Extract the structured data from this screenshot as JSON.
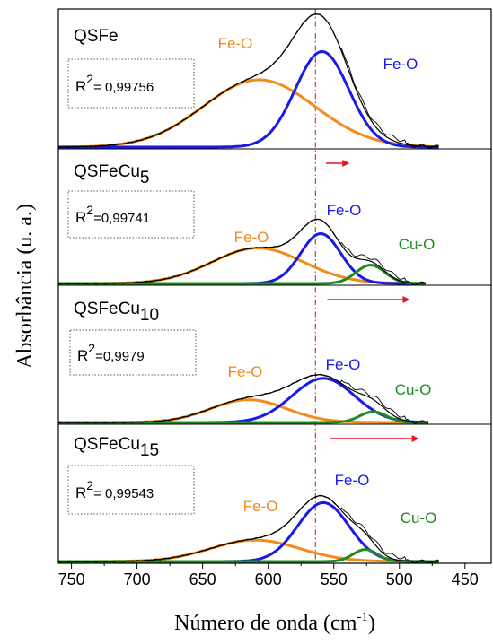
{
  "chart_data": {
    "type": "line",
    "xlabel": "Número de onda (cm",
    "xlabel_sup": "-1",
    "xlabel_close": ")",
    "ylabel": "Absorbância (u. a.)",
    "xlim": [
      760,
      430
    ],
    "xticks": [
      750,
      700,
      650,
      600,
      550,
      500,
      450
    ],
    "reference_line_x": 564,
    "colors": {
      "feo": "#f28a1c",
      "feo2": "#1a1ae6",
      "cuo": "#1e8c1e",
      "measured": "#000000",
      "arrow": "#e8141e",
      "refline": "#d0141e"
    },
    "panels": [
      {
        "sample": "QSFe",
        "sub": "",
        "r2_label": "R",
        "r2_sup": "2",
        "r2_value": "= 0,99756",
        "bands": [
          {
            "name": "Fe-O",
            "center": 607,
            "fwhm": 100,
            "height": 0.5,
            "color": "#f28a1c"
          },
          {
            "name": "Fe-O",
            "center": 559,
            "fwhm": 48,
            "height": 0.71,
            "color": "#1a1ae6"
          }
        ],
        "x_range": [
          760,
          470
        ],
        "arrow": null
      },
      {
        "sample": "QSFeCu",
        "sub": "5",
        "r2_label": "R",
        "r2_sup": "2",
        "r2_value": "=0,99741",
        "bands": [
          {
            "name": "Fe-O",
            "center": 608,
            "fwhm": 82,
            "height": 0.27,
            "color": "#f28a1c"
          },
          {
            "name": "Fe-O",
            "center": 560,
            "fwhm": 36,
            "height": 0.38,
            "color": "#1a1ae6"
          },
          {
            "name": "Cu-O",
            "center": 522,
            "fwhm": 26,
            "height": 0.14,
            "color": "#1e8c1e"
          }
        ],
        "x_range": [
          760,
          480
        ],
        "arrow": [
          556,
          538
        ]
      },
      {
        "sample": "QSFeCu",
        "sub": "10",
        "r2_label": "R",
        "r2_sup": "2",
        "r2_value": "=0,9979",
        "bands": [
          {
            "name": "Fe-O",
            "center": 615,
            "fwhm": 68,
            "height": 0.17,
            "color": "#f28a1c"
          },
          {
            "name": "Fe-O",
            "center": 558,
            "fwhm": 56,
            "height": 0.33,
            "color": "#1a1ae6"
          },
          {
            "name": "Cu-O",
            "center": 520,
            "fwhm": 24,
            "height": 0.08,
            "color": "#1e8c1e"
          }
        ],
        "x_range": [
          760,
          478
        ],
        "arrow": [
          555,
          492
        ]
      },
      {
        "sample": "QSFeCu",
        "sub": "15",
        "r2_label": "R",
        "r2_sup": "2",
        "r2_value": "= 0,99543",
        "bands": [
          {
            "name": "Fe-O",
            "center": 610,
            "fwhm": 80,
            "height": 0.16,
            "color": "#f28a1c"
          },
          {
            "name": "Fe-O",
            "center": 558,
            "fwhm": 46,
            "height": 0.44,
            "color": "#1a1ae6"
          },
          {
            "name": "Cu-O",
            "center": 526,
            "fwhm": 22,
            "height": 0.09,
            "color": "#1e8c1e"
          }
        ],
        "x_range": [
          760,
          470
        ],
        "arrow": [
          553,
          485
        ]
      }
    ]
  }
}
